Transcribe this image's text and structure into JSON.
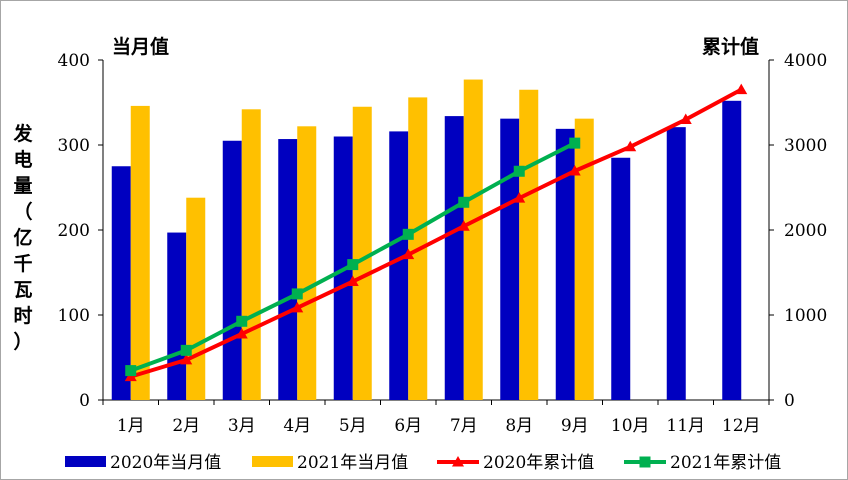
{
  "chart_data": {
    "type": "bar",
    "categories": [
      "1月",
      "2月",
      "3月",
      "4月",
      "5月",
      "6月",
      "7月",
      "8月",
      "9月",
      "10月",
      "11月",
      "12月"
    ],
    "left_axis_title": "当月值",
    "right_axis_title": "累计值",
    "ylabel_chars": [
      "发",
      "电",
      "量",
      "（",
      "亿",
      "千",
      "瓦",
      "时",
      "）"
    ],
    "ylim_left": [
      0,
      400
    ],
    "ylim_right": [
      0,
      4000
    ],
    "left_ticks": [
      0,
      100,
      200,
      300,
      400
    ],
    "right_ticks": [
      0,
      1000,
      2000,
      3000,
      4000
    ],
    "grid": false,
    "legend_position": "bottom",
    "series": [
      {
        "name": "2020年当月值",
        "kind": "bar",
        "axis": "left",
        "color": "#0000c0",
        "values": [
          275,
          197,
          305,
          307,
          310,
          316,
          334,
          331,
          319,
          285,
          321,
          352
        ]
      },
      {
        "name": "2021年当月值",
        "kind": "bar",
        "axis": "left",
        "color": "#ffc000",
        "values": [
          346,
          238,
          342,
          322,
          345,
          356,
          377,
          365,
          331,
          null,
          null,
          null
        ]
      },
      {
        "name": "2020年累计值",
        "kind": "line",
        "axis": "right",
        "color": "#ff0000",
        "marker": "triangle",
        "values": [
          275,
          472,
          777,
          1084,
          1394,
          1710,
          2044,
          2375,
          2694,
          2979,
          3300,
          3652
        ]
      },
      {
        "name": "2021年累计值",
        "kind": "line",
        "axis": "right",
        "color": "#00b050",
        "marker": "square",
        "values": [
          346,
          584,
          926,
          1248,
          1593,
          1949,
          2326,
          2691,
          3022,
          null,
          null,
          null
        ]
      }
    ]
  }
}
